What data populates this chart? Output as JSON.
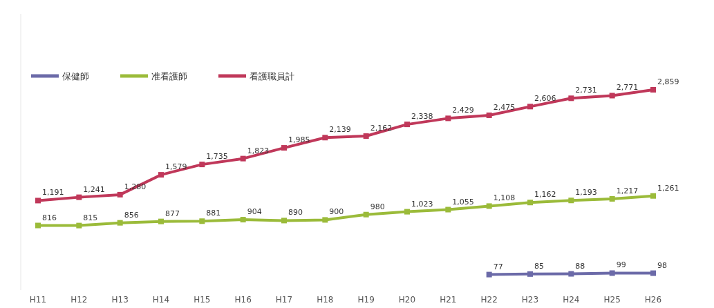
{
  "chart_data": {
    "type": "line",
    "categories": [
      "H11",
      "H12",
      "H13",
      "H14",
      "H15",
      "H16",
      "H17",
      "H18",
      "H19",
      "H20",
      "H21",
      "H22",
      "H23",
      "H24",
      "H25",
      "H26"
    ],
    "series": [
      {
        "name": "保健師",
        "color": "#6b6aa8",
        "values": [
          null,
          null,
          null,
          null,
          null,
          null,
          null,
          null,
          null,
          null,
          null,
          77,
          85,
          88,
          99,
          98
        ],
        "value_labels": [
          null,
          null,
          null,
          null,
          null,
          null,
          null,
          null,
          null,
          null,
          null,
          "77",
          "85",
          "88",
          "99",
          "98"
        ]
      },
      {
        "name": "准看護師",
        "color": "#9bbb3a",
        "values": [
          816,
          815,
          856,
          877,
          881,
          904,
          890,
          900,
          980,
          1023,
          1055,
          1108,
          1162,
          1193,
          1217,
          1261
        ],
        "value_labels": [
          "816",
          "815",
          "856",
          "877",
          "881",
          "904",
          "890",
          "900",
          "980",
          "1,023",
          "1,055",
          "1,108",
          "1,162",
          "1,193",
          "1,217",
          "1,261"
        ]
      },
      {
        "name": "看護職員計",
        "color": "#c0385a",
        "values": [
          1191,
          1241,
          1280,
          1579,
          1735,
          1823,
          1985,
          2139,
          2162,
          2338,
          2429,
          2475,
          2606,
          2731,
          2771,
          2859
        ],
        "value_labels": [
          "1,191",
          "1,241",
          "1,280",
          "1,579",
          "1,735",
          "1,823",
          "1,985",
          "2,139",
          "2,162",
          "2,338",
          "2,429",
          "2,475",
          "2,606",
          "2,731",
          "2,771",
          "2,859"
        ]
      }
    ],
    "marker": "square",
    "legend": "top left",
    "grid": false
  }
}
